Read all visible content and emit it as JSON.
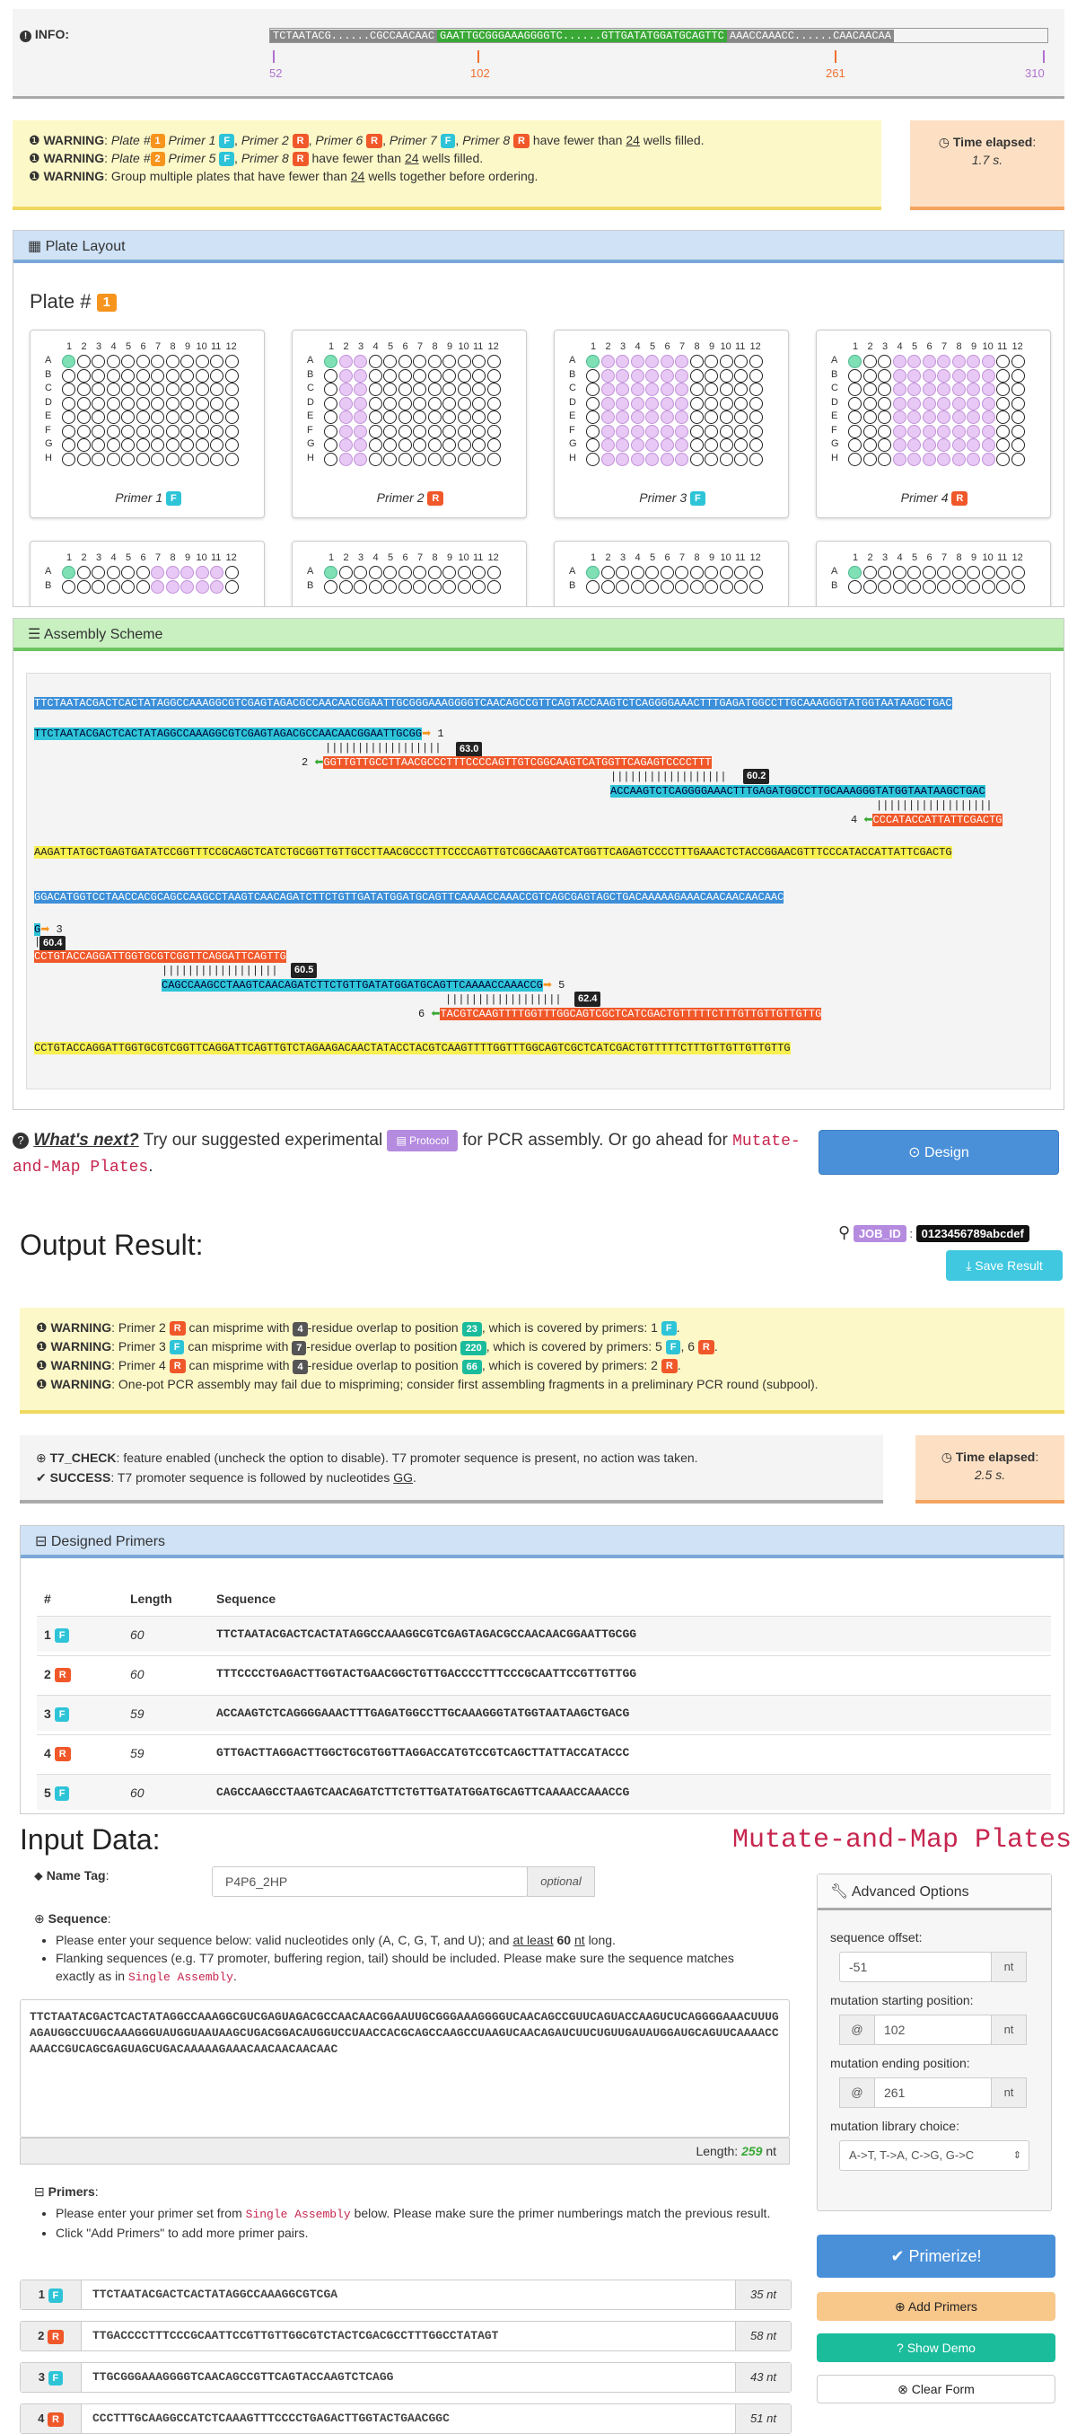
{
  "info": {
    "label": "INFO:",
    "seq_left": "TCTAATACG......CGCCAACAAC",
    "seq_mid": "GAATTGCGGGAAAGGGGTC......GTTGATATGGATGCAGTTC",
    "seq_right": "AAACCAAACC......CAACAACAA",
    "ticks": [
      "52",
      "102",
      "261",
      "310"
    ]
  },
  "warnings_top": {
    "w1": {
      "label": "WARNING",
      "plate_text": "Plate #",
      "plate": "1",
      "primers": [
        {
          "name": "Primer 1",
          "dir": "F"
        },
        {
          "name": "Primer 2",
          "dir": "R"
        },
        {
          "name": "Primer 6",
          "dir": "R"
        },
        {
          "name": "Primer 7",
          "dir": "F"
        },
        {
          "name": "Primer 8",
          "dir": "R"
        }
      ],
      "tail": "have fewer than",
      "num": "24",
      "tail2": "wells filled."
    },
    "w2": {
      "label": "WARNING",
      "plate_text": "Plate #",
      "plate": "2",
      "primers": [
        {
          "name": "Primer 5",
          "dir": "F"
        },
        {
          "name": "Primer 8",
          "dir": "R"
        }
      ],
      "tail": "have fewer than",
      "num": "24",
      "tail2": "wells filled."
    },
    "w3": {
      "label": "WARNING",
      "text": "Group multiple plates that have fewer than",
      "num": "24",
      "tail": "wells together before ordering."
    },
    "time_label": "Time elapsed",
    "time_value": "1.7 s."
  },
  "plate_layout": {
    "title": "Plate Layout",
    "plate_heading": "Plate #",
    "plate_num": "1",
    "cols": [
      "1",
      "2",
      "3",
      "4",
      "5",
      "6",
      "7",
      "8",
      "9",
      "10",
      "11",
      "12"
    ],
    "rows": [
      "A",
      "B",
      "C",
      "D",
      "E",
      "F",
      "G",
      "H"
    ],
    "plates": [
      {
        "label": "Primer 1",
        "dir": "F"
      },
      {
        "label": "Primer 2",
        "dir": "R"
      },
      {
        "label": "Primer 3",
        "dir": "F"
      },
      {
        "label": "Primer 4",
        "dir": "R"
      }
    ]
  },
  "assembly": {
    "title": "Assembly Scheme",
    "full1": "TTCTAATACGACTCACTATAGGCCAAAGGCGTCGAGTAGACGCCAACAACGGAATTGCGGGAAAGGGGTCAACAGCCGTTCAGTACCAAGTCTCAGGGGAAACTTTGAGATGGCCTTGCAAAGGGTATGGTAATAAGCTGAC",
    "p1": "TTCTAATACGACTCACTATAGGCCAAAGGCGTCGAGTAGACGCCAACAACGGAATTGCGG",
    "p1n": "1",
    "t1": "63.0",
    "p2n": "2",
    "p2": "GGTTGTTGCCTTAACGCCCTTTCCCCAGTTGTCGGCAAGTCATGGTTCAGAGTCCCCTTT",
    "t2": "60.2",
    "p3": "ACCAAGTCTCAGGGGAAACTTTGAGATGGCCTTGCAAAGGGTATGGTAATAAGCTGAC",
    "p4n": "4",
    "p4": "CCCATACCATTATTCGACTG",
    "rev1": "AAGATTATGCTGAGTGATATCCGGTTTCCGCAGCTCATCTGCGGTTGTTGCCTTAACGCCCTTTCCCCAGTTGTCGGCAAGTCATGGTTCAGAGTCCCCTTTGAAACTCTACCGGAACGTTTCCCATACCATTATTCGACTG",
    "full2": "GGACATGGTCCTAACCACGCAGCCAAGCCTAAGTCAACAGATCTTCTGTTGATATGGATGCAGTTCAAAACCAAACCGTCAGCGAGTAGCTGACAAAAAGAAACAACAACAACAAC",
    "p4tail": "G",
    "p4tn": "3",
    "t4": "60.4",
    "p5a": "CCTGTACCAGGATTGGTGCGTCGGTTCAGGATTCAGTTG",
    "t5": "60.5",
    "p5": "CAGCCAAGCCTAAGTCAACAGATCTTCTGTTGATATGGATGCAGTTCAAAACCAAACCG",
    "p5n": "5",
    "t6": "62.4",
    "p6n": "6",
    "p6": "TACGTCAAGTTTTGGTTTGGCAGTCGCTCATCGACTGTTTTTCTTTGTTGTTGTTGTTG",
    "rev2": "CCTGTACCAGGATTGGTGCGTCGGTTCAGGATTCAGTTGTCTAGAAGACAACTATACCTACGTCAAGTTTTGGTTTGGCAGTCGCTCATCGACTGTTTTTCTTTGTTGTTGTTGTTG"
  },
  "next": {
    "q": "What's next?",
    "t1": "Try our suggested experimental",
    "btn": "Protocol",
    "t2": "for PCR assembly. Or go ahead for",
    "link": "Mutate-and-Map Plates",
    "dot": ".",
    "design": "Design"
  },
  "output": {
    "title": "Output Result:",
    "job_label": "JOB_ID",
    "job_id": "0123456789abcdef",
    "save": "Save Result",
    "warns": [
      {
        "label": "WARNING",
        "primer": "Primer 2",
        "dir": "R",
        "t1": "can misprime with",
        "n": "4",
        "t2": "-residue overlap to position",
        "pos": "23",
        "t3": "which is covered by primers:",
        "cov": [
          {
            "n": "1",
            "d": "F"
          }
        ]
      },
      {
        "label": "WARNING",
        "primer": "Primer 3",
        "dir": "F",
        "t1": "can misprime with",
        "n": "7",
        "t2": "-residue overlap to position",
        "pos": "220",
        "t3": "which is covered by primers:",
        "cov": [
          {
            "n": "5",
            "d": "F"
          },
          {
            "n": "6",
            "d": "R"
          }
        ]
      },
      {
        "label": "WARNING",
        "primer": "Primer 4",
        "dir": "R",
        "t1": "can misprime with",
        "n": "4",
        "t2": "-residue overlap to position",
        "pos": "66",
        "t3": "which is covered by primers:",
        "cov": [
          {
            "n": "2",
            "d": "R"
          }
        ]
      }
    ],
    "warn4_label": "WARNING",
    "warn4": "One-pot PCR assembly may fail due to mispriming; consider first assembling fragments in a preliminary PCR round (subpool).",
    "t7_label": "T7_CHECK",
    "t7_text": "feature enabled (uncheck the option to disable). T7 promoter sequence is present, no action was taken.",
    "succ_label": "SUCCESS",
    "succ_text": "T7 promoter sequence is followed by nucleotides",
    "succ_nt": "GG",
    "time_label": "Time elapsed",
    "time_value": "2.5 s."
  },
  "designed": {
    "title": "Designed Primers",
    "h_num": "#",
    "h_len": "Length",
    "h_seq": "Sequence",
    "rows": [
      {
        "n": "1",
        "d": "F",
        "len": "60",
        "seq": "TTCTAATACGACTCACTATAGGCCAAAGGCGTCGAGTAGACGCCAACAACGGAATTGCGG"
      },
      {
        "n": "2",
        "d": "R",
        "len": "60",
        "seq": "TTTCCCCTGAGACTTGGTACTGAACGGCTGTTGACCCCTTTCCCGCAATTCCGTTGTTGG"
      },
      {
        "n": "3",
        "d": "F",
        "len": "59",
        "seq": "ACCAAGTCTCAGGGGAAACTTTGAGATGGCCTTGCAAAGGGTATGGTAATAAGCTGACG"
      },
      {
        "n": "4",
        "d": "R",
        "len": "59",
        "seq": "GTTGACTTAGGACTTGGCTGCGTGGTTAGGACCATGTCCGTCAGCTTATTACCATACCC"
      },
      {
        "n": "5",
        "d": "F",
        "len": "60",
        "seq": "CAGCCAAGCCTAAGTCAACAGATCTTCTGTTGATATGGATGCAGTTCAAAACCAAACCG"
      }
    ]
  },
  "input": {
    "title": "Input Data:",
    "mode": "Mutate-and-Map Plates",
    "name_label": "Name Tag",
    "name_value": "P4P6_2HP",
    "optional": "optional",
    "seq_label": "Sequence",
    "seq_b1a": "Please enter your sequence below: valid nucleotides only (A, C, G, T, and U); and",
    "seq_b1b": "at least",
    "seq_b1c": "60",
    "seq_b1d": "nt",
    "seq_b1e": "long.",
    "seq_b2a": "Flanking sequences (e.g. T7 promoter, buffering region, tail) should be included. Please make sure the sequence matches exactly as in",
    "seq_b2b": "Single Assembly",
    "seq_b2c": ".",
    "sequence": "TTCTAATACGACTCACTATAGGCCAAAGGCGUCGAGUAGACGCCAACAACGGAAUUGCGGGAAAGGGGUCAACAGCCGUUCAGUACCAAGUCUCAGGGGAAACUUUGAGAUGGCCUUGCAAAGGGUAUGGUAAUAAGCUGACGGACAUGGUCCUAACCACGCAGCCAAGCCUAAGUCAACAGAUCUUCUGUUGAUAUGGAUGCAGUUCAAAACCAAACCGUCAGCGAGUAGCUGACAAAAAGAAACAACAACAACAAC",
    "length_label": "Length:",
    "length_value": "259",
    "length_unit": "nt",
    "primers_label": "Primers",
    "pr_b1a": "Please enter your primer set from",
    "pr_b1b": "Single Assembly",
    "pr_b1c": "below. Please make sure the primer numberings match the previous result.",
    "pr_b2": "Click \"Add Primers\" to add more primer pairs.",
    "prim": [
      {
        "n": "1",
        "d": "F",
        "seq": "TTCTAATACGACTCACTATAGGCCAAAGGCGTCGA",
        "len": "35 nt"
      },
      {
        "n": "2",
        "d": "R",
        "seq": "TTGACCCCTTTCCCGCAATTCCGTTGTTGGCGTCTACTCGACGCCTTTGGCCTATAGT",
        "len": "58 nt"
      },
      {
        "n": "3",
        "d": "F",
        "seq": "TTGCGGGAAAGGGGTCAACAGCCGTTCAGTACCAAGTCTCAGG",
        "len": "43 nt"
      },
      {
        "n": "4",
        "d": "R",
        "seq": "CCCTTTGCAAGGCCATCTCAAAGTTTCCCCTGAGACTTGGTACTGAACGGC",
        "len": "51 nt"
      }
    ]
  },
  "advanced": {
    "title": "Advanced Options",
    "offset_label": "sequence offset",
    "offset_val": "-51",
    "nt": "nt",
    "start_label": "mutation starting position",
    "start_val": "102",
    "end_label": "mutation ending position",
    "end_val": "261",
    "lib_label": "mutation library choice",
    "lib_val": "A->T, T->A, C->G, G->C",
    "at": "@"
  },
  "actions": {
    "primerize": "Primerize!",
    "add": "Add Primers",
    "demo": "Show Demo",
    "clear": "Clear Form"
  }
}
